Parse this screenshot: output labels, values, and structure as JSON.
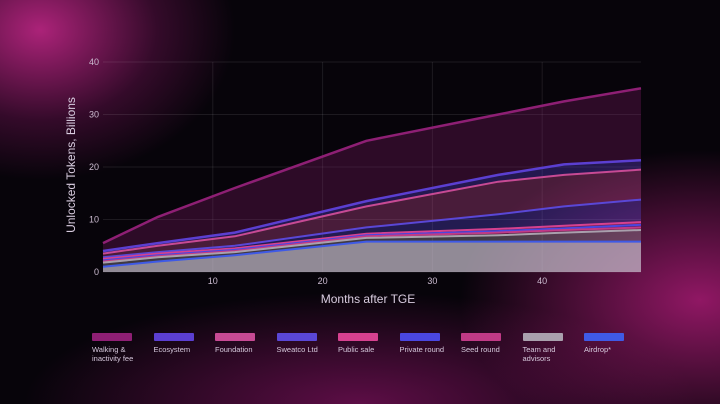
{
  "chart_data": {
    "type": "area",
    "xlabel": "Months after TGE",
    "ylabel": "Unlocked Tokens, Billions",
    "xlim": [
      0,
      49
    ],
    "ylim": [
      0,
      40
    ],
    "x_ticks": [
      10,
      20,
      30,
      40
    ],
    "y_ticks": [
      0,
      10,
      20,
      30,
      40
    ],
    "grid": true,
    "legend_position": "bottom",
    "x": [
      0,
      5,
      12,
      24,
      36,
      42,
      49
    ],
    "series": [
      {
        "name": "Walking & inactivity fee",
        "color": "#8e1f74",
        "values": [
          5.5,
          10.5,
          16,
          25,
          30,
          32.5,
          35
        ]
      },
      {
        "name": "Ecosystem",
        "color": "#5b3fd1",
        "values": [
          4,
          5.5,
          7.5,
          13.5,
          18.5,
          20.5,
          21.3
        ]
      },
      {
        "name": "Foundation",
        "color": "#c74a94",
        "values": [
          3.5,
          5,
          6.8,
          12.5,
          17.2,
          18.5,
          19.5
        ]
      },
      {
        "name": "Sweatco Ltd",
        "color": "#5a47d6",
        "values": [
          2.8,
          3.8,
          5,
          8.5,
          11,
          12.5,
          13.8
        ]
      },
      {
        "name": "Public sale",
        "color": "#d6418f",
        "values": [
          2.5,
          3.5,
          4.5,
          7.3,
          8.2,
          8.8,
          9.5
        ]
      },
      {
        "name": "Private round",
        "color": "#4a47e0",
        "values": [
          2.2,
          3.2,
          4.2,
          7,
          7.8,
          8.3,
          9
        ]
      },
      {
        "name": "Seed round",
        "color": "#c03a86",
        "values": [
          2,
          3,
          4,
          6.8,
          7.5,
          8,
          8.5
        ]
      },
      {
        "name": "Team and advisors",
        "color": "#a9a0ad",
        "values": [
          1.8,
          2.8,
          3.8,
          6.5,
          7,
          7.5,
          8
        ]
      },
      {
        "name": "Airdrop*",
        "color": "#3f5ae6",
        "values": [
          1,
          2,
          3.2,
          5.8,
          5.8,
          5.8,
          5.8
        ]
      }
    ]
  }
}
